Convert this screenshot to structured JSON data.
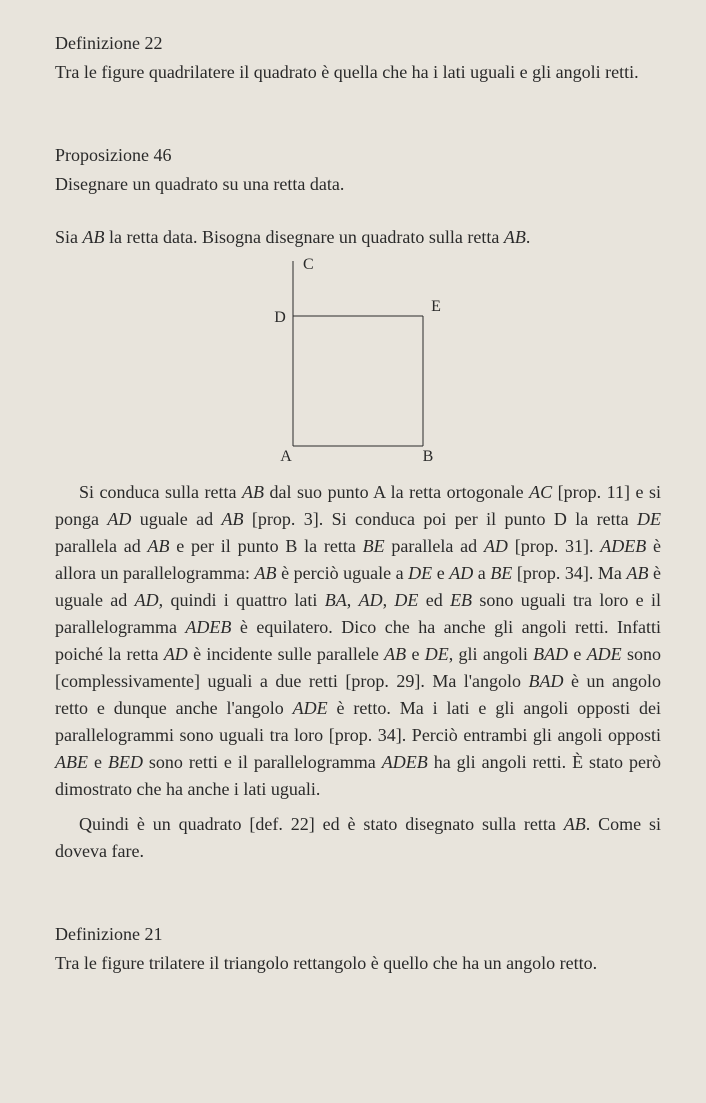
{
  "def22": {
    "heading": "Definizione 22",
    "text": "Tra le figure quadrilatere il quadrato è quella che ha i lati uguali e gli angoli retti."
  },
  "prop46": {
    "heading": "Proposizione 46",
    "text": "Disegnare un quadrato su una retta data."
  },
  "given": {
    "pre": "Sia ",
    "ab": "AB",
    "mid": " la retta data. Bisogna disegnare un quadrato sulla retta ",
    "ab2": "AB",
    "post": "."
  },
  "diagram": {
    "labels": {
      "A": "A",
      "B": "B",
      "C": "C",
      "D": "D",
      "E": "E"
    },
    "square_size": 130,
    "extension": 55,
    "stroke_color": "#2a2a2a",
    "label_fontsize": 16
  },
  "proof_main": "Si conduca sulla retta AB dal suo punto A la retta ortogonale AC [prop. 11] e si ponga AD uguale ad AB [prop. 3]. Si conduca poi per il punto D la retta DE parallela ad AB e per il punto B la retta BE parallela ad AD [prop. 31]. ADEB è allora un parallelogramma: AB è perciò uguale a DE e AD a BE [prop. 34]. Ma AB è uguale ad AD, quindi i quattro lati BA, AD, DE ed EB sono uguali tra loro e il parallelogramma ADEB è equilatero. Dico che ha anche gli angoli retti. Infatti poiché la retta AD è incidente sulle parallele AB e DE, gli angoli BAD e ADE sono [complessivamente] uguali a due retti [prop. 29]. Ma l'angolo BAD è un angolo retto e dunque anche l'angolo ADE è retto. Ma i lati e gli angoli opposti dei parallelogrammi sono uguali tra loro [prop. 34]. Perciò entrambi gli angoli opposti ABE e BED sono retti e il parallelogramma ADEB ha gli angoli retti. È stato però dimostrato che ha anche i lati uguali.",
  "proof_conclusion": "Quindi è un quadrato [def. 22] ed è stato disegnato sulla retta AB. Come si doveva fare.",
  "def21": {
    "heading": "Definizione 21",
    "text": "Tra le figure trilatere il triangolo rettangolo è quello che ha un angolo retto."
  },
  "italic_terms": [
    "AB",
    "AC",
    "AD",
    "DE",
    "BE",
    "ADEB",
    "BA",
    "EB",
    "BAD",
    "ADE",
    "ABE",
    "BED"
  ],
  "colors": {
    "background": "#e8e4dc",
    "text": "#2a2a2a"
  },
  "typography": {
    "body_fontsize": 18,
    "heading_fontsize": 18,
    "font_family": "Georgia, serif"
  }
}
